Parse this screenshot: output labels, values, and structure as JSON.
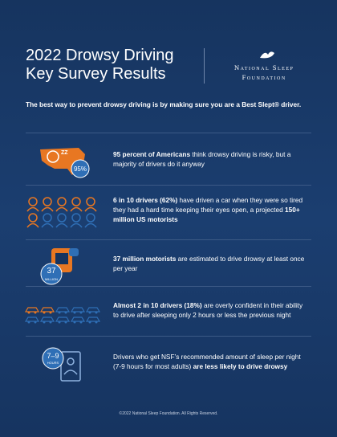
{
  "header": {
    "title_lines": [
      "2022 Drowsy Driving",
      "Key Survey Results"
    ],
    "logo_lines": [
      "National Sleep",
      "Foundation"
    ]
  },
  "tagline": "The best way to prevent drowsy driving is by making sure you are a Best Slept® driver.",
  "items": [
    {
      "badge": [
        "95%"
      ],
      "segments": [
        {
          "text": "95 percent of Americans",
          "bold": true
        },
        {
          "text": " think drowsy driving is risky, but a majority of drivers do it anyway",
          "bold": false
        }
      ]
    },
    {
      "badge": [],
      "segments": [
        {
          "text": "6 in 10 drivers (62%)",
          "bold": true
        },
        {
          "text": "  have driven a car when they were so tired they had a hard time keeping their eyes open, a projected ",
          "bold": false
        },
        {
          "text": "150+ million US motorists",
          "bold": true
        }
      ]
    },
    {
      "badge": [
        "37",
        "MILLION"
      ],
      "segments": [
        {
          "text": "37 million motorists",
          "bold": true
        },
        {
          "text": " are estimated to drive drowsy at least once per year",
          "bold": false
        }
      ]
    },
    {
      "badge": [],
      "segments": [
        {
          "text": "Almost 2 in 10 drivers (18%)",
          "bold": true
        },
        {
          "text": "  are overly confident in their ability to drive after sleeping only 2 hours or less the previous night",
          "bold": false
        }
      ]
    },
    {
      "badge": [
        "7–9",
        "HOURS"
      ],
      "segments": [
        {
          "text": "Drivers who get NSF’s recommended amount of sleep per night (7-9 hours for most adults) ",
          "bold": false
        },
        {
          "text": "are less likely to drive drowsy",
          "bold": true
        }
      ]
    }
  ],
  "footer": "©2022 National Sleep Foundation. All Rights Reserved."
}
